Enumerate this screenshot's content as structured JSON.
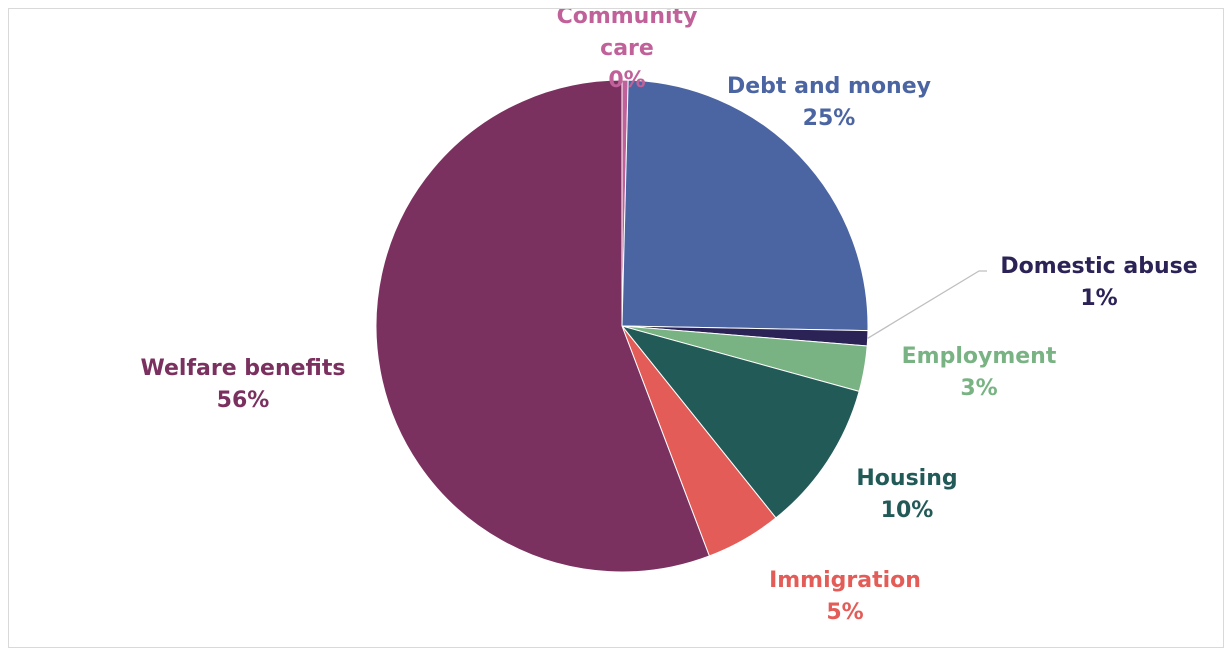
{
  "chart_data": {
    "type": "pie",
    "title": "",
    "slices": [
      {
        "label": "Community care",
        "label_lines": [
          "Community",
          "care"
        ],
        "value": 0.4,
        "display": "0%",
        "color": "#C0619A"
      },
      {
        "label": "Debt and money",
        "label_lines": [
          "Debt and money"
        ],
        "value": 25,
        "display": "25%",
        "color": "#4B65A2"
      },
      {
        "label": "Domestic abuse",
        "label_lines": [
          "Domestic abuse"
        ],
        "value": 1,
        "display": "1%",
        "color": "#2B2356"
      },
      {
        "label": "Employment",
        "label_lines": [
          "Employment"
        ],
        "value": 3,
        "display": "3%",
        "color": "#79B383"
      },
      {
        "label": "Housing",
        "label_lines": [
          "Housing"
        ],
        "value": 10,
        "display": "10%",
        "color": "#225A58"
      },
      {
        "label": "Immigration",
        "label_lines": [
          "Immigration"
        ],
        "value": 5,
        "display": "5%",
        "color": "#E35C57"
      },
      {
        "label": "Welfare benefits",
        "label_lines": [
          "Welfare benefits"
        ],
        "value": 56,
        "display": "56%",
        "color": "#7B315F"
      }
    ],
    "label_colors": [
      "#C0619A",
      "#4B65A2",
      "#2B2356",
      "#79B383",
      "#225A58",
      "#E35C57",
      "#7B315F"
    ],
    "start_angle": "12 o'clock",
    "direction": "clockwise",
    "legend": "none",
    "leader_line_color": "#BFBFBF"
  }
}
